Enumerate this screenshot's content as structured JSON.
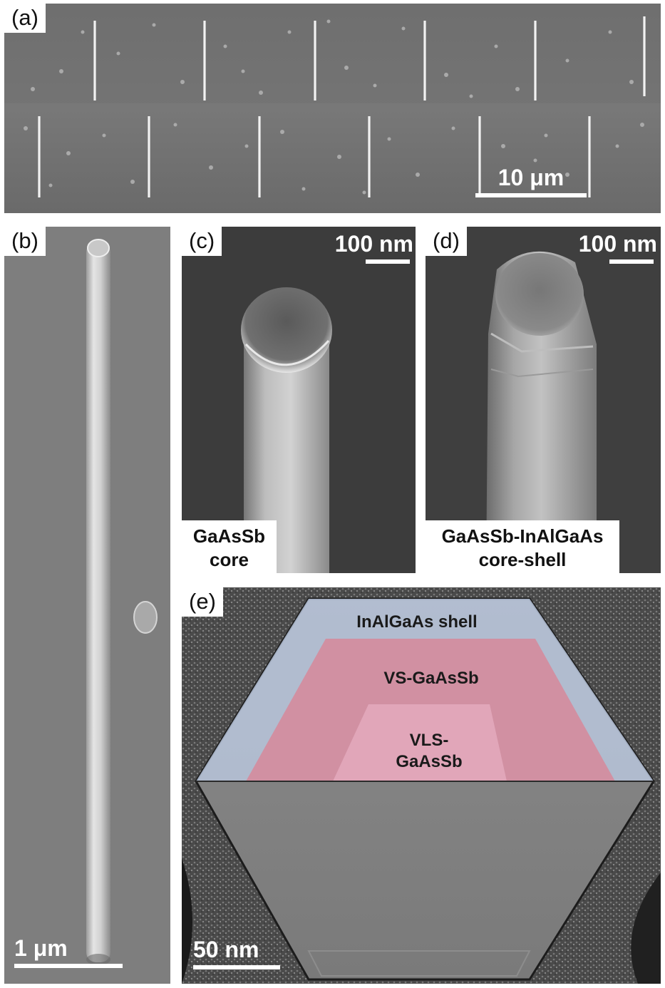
{
  "panels": {
    "a": {
      "label": "(a)",
      "scale_text": "10 μm"
    },
    "b": {
      "label": "(b)",
      "scale_text": "1 μm"
    },
    "c": {
      "label": "(c)",
      "scale_text": "100 nm",
      "caption_line1": "GaAsSb",
      "caption_line2": "core"
    },
    "d": {
      "label": "(d)",
      "scale_text": "100 nm",
      "caption_line1": "GaAsSb-InAlGaAs",
      "caption_line2": "core-shell"
    },
    "e": {
      "label": "(e)",
      "scale_text": "50 nm",
      "layer_shell": "InAlGaAs shell",
      "layer_vs": "VS-GaAsSb",
      "layer_vls_line1": "VLS-",
      "layer_vls_line2": "GaAsSb"
    }
  },
  "colors": {
    "shell_overlay": "#b9c6dc",
    "vs_overlay": "#d7889a",
    "vls_overlay": "#e2a9bb",
    "sem_background": "#3d3d3d"
  }
}
